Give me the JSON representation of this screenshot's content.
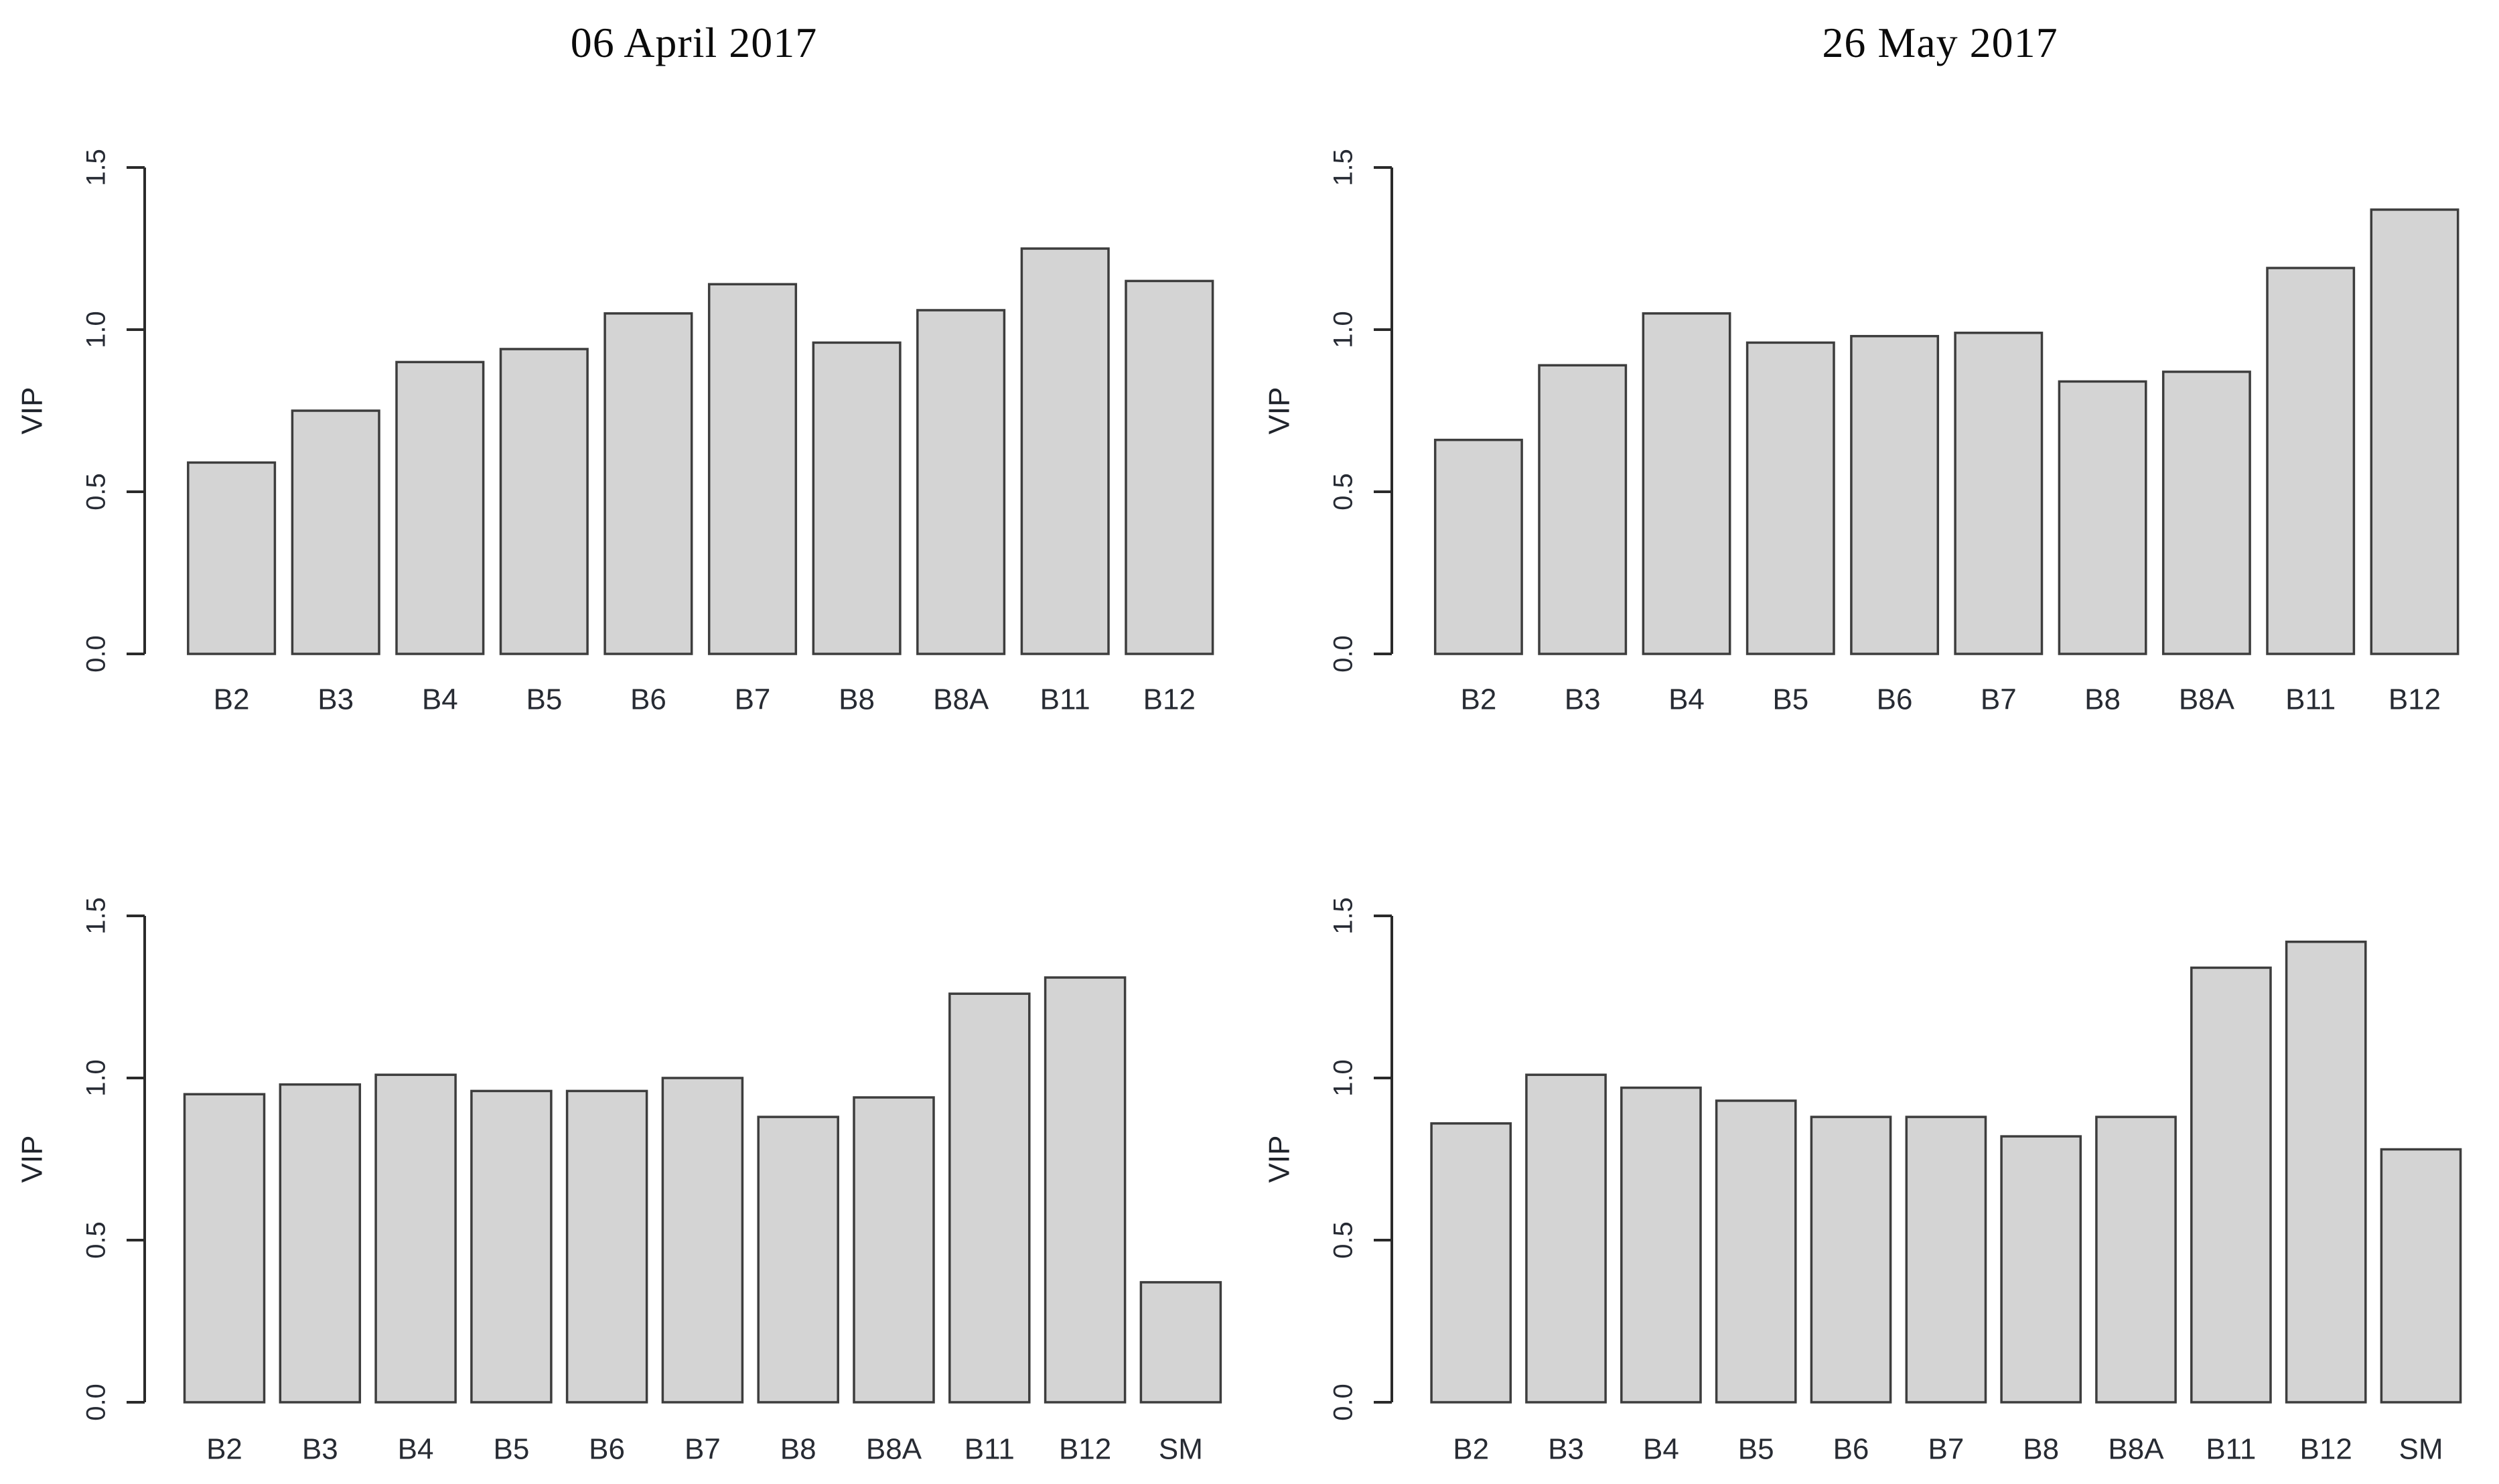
{
  "figure": {
    "background": "#ffffff",
    "bar_fill": "#d4d4d4",
    "bar_border": "#3d3d3d",
    "axis_color": "#2a2a2a",
    "tick_label_color": "#262a33",
    "x_label_color": "#272b33",
    "title_color": "#0b0b0b",
    "ylabel_color": "#20242c"
  },
  "chart_data": [
    {
      "type": "bar",
      "position": "top-left",
      "title": "06 April 2017",
      "xlabel": "",
      "ylabel": "VIP",
      "ylim": [
        0,
        1.5
      ],
      "yticks": [
        "0.0",
        "0.5",
        "1.0",
        "1.5"
      ],
      "grid": false,
      "legend": null,
      "bar_color": "#d4d4d4",
      "bar_border": "#3d3d3d",
      "categories": [
        "B2",
        "B3",
        "B4",
        "B5",
        "B6",
        "B7",
        "B8",
        "B8A",
        "B11",
        "B12"
      ],
      "values": [
        0.59,
        0.75,
        0.9,
        0.94,
        1.05,
        1.14,
        0.96,
        1.06,
        1.25,
        1.15
      ]
    },
    {
      "type": "bar",
      "position": "top-right",
      "title": "26 May 2017",
      "xlabel": "",
      "ylabel": "VIP",
      "ylim": [
        0,
        1.5
      ],
      "yticks": [
        "0.0",
        "0.5",
        "1.0",
        "1.5"
      ],
      "grid": false,
      "legend": null,
      "bar_color": "#d4d4d4",
      "bar_border": "#3d3d3d",
      "categories": [
        "B2",
        "B3",
        "B4",
        "B5",
        "B6",
        "B7",
        "B8",
        "B8A",
        "B11",
        "B12"
      ],
      "values": [
        0.66,
        0.89,
        1.05,
        0.96,
        0.98,
        0.99,
        0.84,
        0.87,
        1.19,
        1.37
      ]
    },
    {
      "type": "bar",
      "position": "bottom-left",
      "title": "",
      "xlabel": "",
      "ylabel": "VIP",
      "ylim": [
        0,
        1.5
      ],
      "yticks": [
        "0.0",
        "0.5",
        "1.0",
        "1.5"
      ],
      "grid": false,
      "legend": null,
      "bar_color": "#d4d4d4",
      "bar_border": "#3d3d3d",
      "categories": [
        "B2",
        "B3",
        "B4",
        "B5",
        "B6",
        "B7",
        "B8",
        "B8A",
        "B11",
        "B12",
        "SM"
      ],
      "values": [
        0.95,
        0.98,
        1.01,
        0.96,
        0.96,
        1.0,
        0.88,
        0.94,
        1.26,
        1.31,
        0.37
      ]
    },
    {
      "type": "bar",
      "position": "bottom-right",
      "title": "",
      "xlabel": "",
      "ylabel": "VIP",
      "ylim": [
        0,
        1.5
      ],
      "yticks": [
        "0.0",
        "0.5",
        "1.0",
        "1.5"
      ],
      "grid": false,
      "legend": null,
      "bar_color": "#d4d4d4",
      "bar_border": "#3d3d3d",
      "categories": [
        "B2",
        "B3",
        "B4",
        "B5",
        "B6",
        "B7",
        "B8",
        "B8A",
        "B11",
        "B12",
        "SM"
      ],
      "values": [
        0.86,
        1.01,
        0.97,
        0.93,
        0.88,
        0.88,
        0.82,
        0.88,
        1.34,
        1.42,
        0.78
      ]
    }
  ]
}
